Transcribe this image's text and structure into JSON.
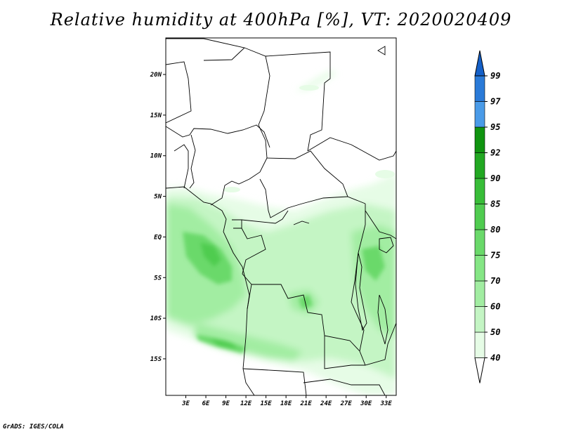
{
  "title": "Relative humidity at 400hPa [%], VT: 2020020409",
  "credit": "GrADS: IGES/COLA",
  "map": {
    "lon_range": [
      0,
      34.5
    ],
    "lat_range": [
      -19.5,
      24.5
    ],
    "lat_labels": [
      {
        "lat": 20,
        "text": "20N"
      },
      {
        "lat": 15,
        "text": "15N"
      },
      {
        "lat": 10,
        "text": "10N"
      },
      {
        "lat": 5,
        "text": "5N"
      },
      {
        "lat": 0,
        "text": "EQ"
      },
      {
        "lat": -5,
        "text": "5S"
      },
      {
        "lat": -10,
        "text": "10S"
      },
      {
        "lat": -15,
        "text": "15S"
      }
    ],
    "lon_labels": [
      {
        "lon": 3,
        "text": "3E"
      },
      {
        "lon": 6,
        "text": "6E"
      },
      {
        "lon": 9,
        "text": "9E"
      },
      {
        "lon": 12,
        "text": "12E"
      },
      {
        "lon": 15,
        "text": "15E"
      },
      {
        "lon": 18,
        "text": "18E"
      },
      {
        "lon": 21,
        "text": "21E"
      },
      {
        "lon": 24,
        "text": "24E"
      },
      {
        "lon": 27,
        "text": "27E"
      },
      {
        "lon": 30,
        "text": "30E"
      },
      {
        "lon": 33,
        "text": "33E"
      }
    ]
  },
  "colorbar": {
    "levels": [
      "40",
      "50",
      "60",
      "70",
      "75",
      "80",
      "85",
      "90",
      "92",
      "95",
      "97",
      "99"
    ],
    "colors": [
      "#ffffff",
      "#e6fce6",
      "#c4f5c4",
      "#a2eda2",
      "#85e685",
      "#6ad96a",
      "#50cc50",
      "#38bd38",
      "#22a822",
      "#109410",
      "#4a9be8",
      "#2a7ad8",
      "#1460c8"
    ]
  }
}
